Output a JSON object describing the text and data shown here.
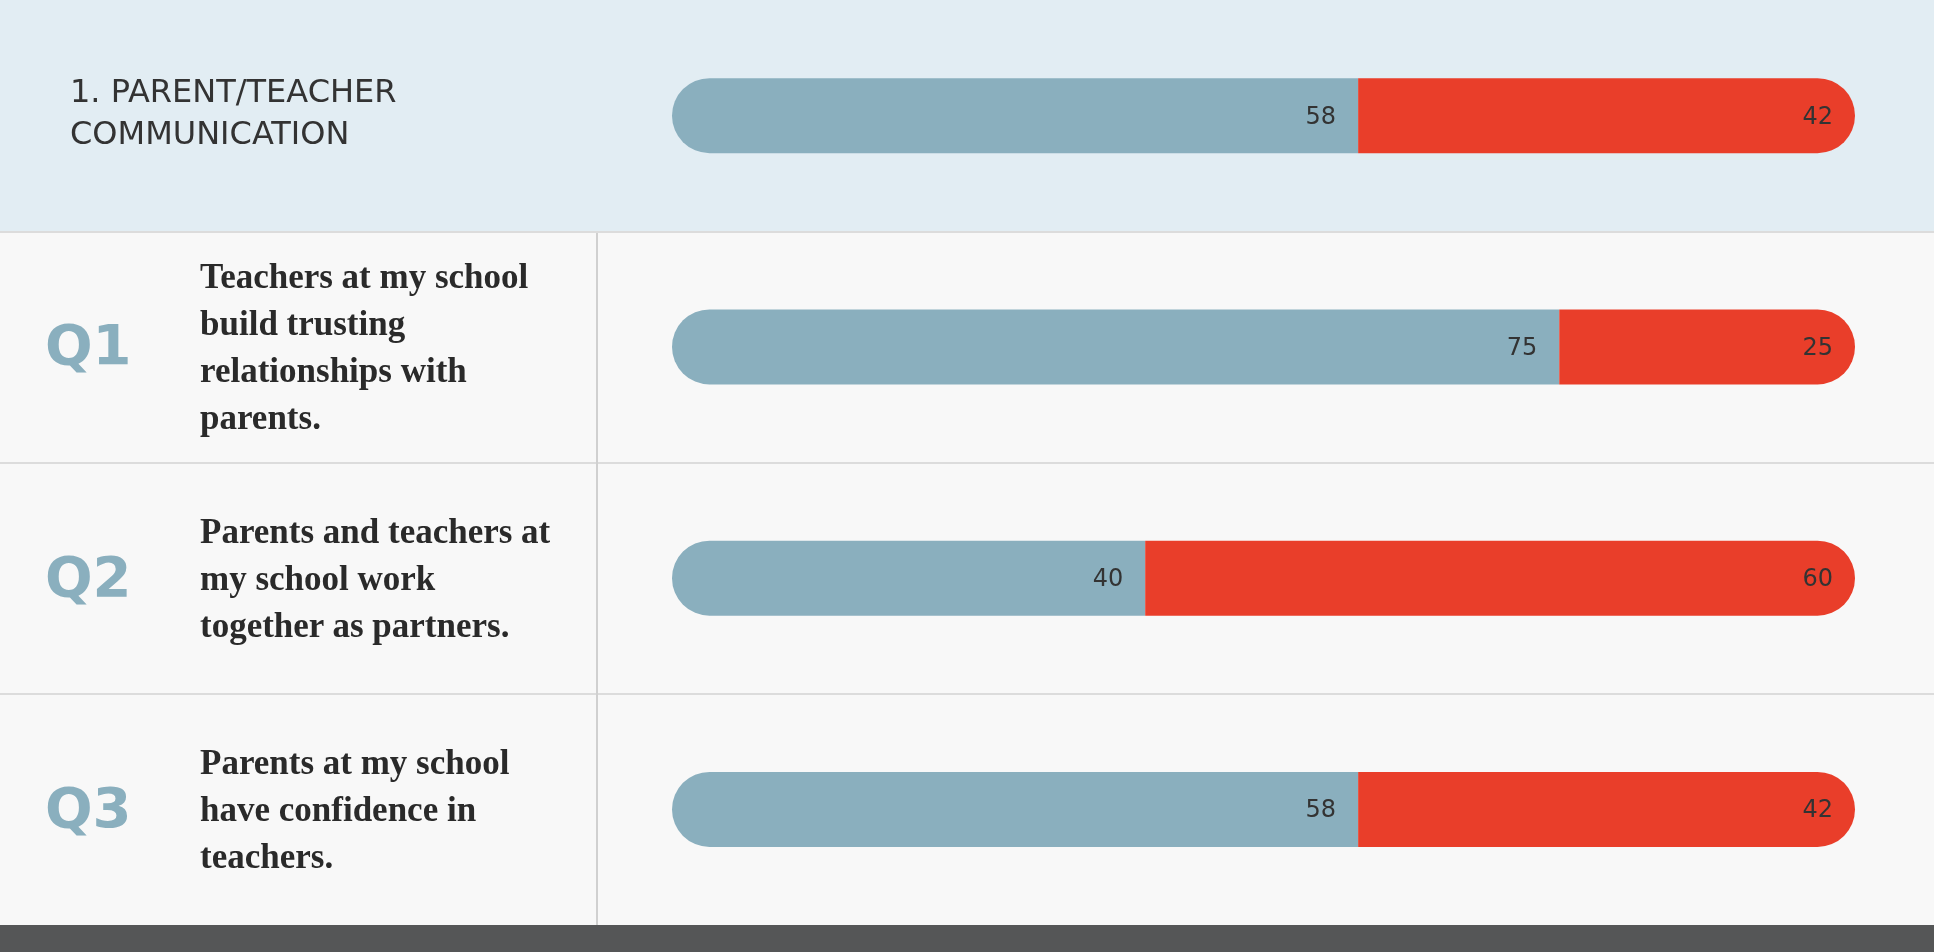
{
  "chart_data": {
    "type": "bar",
    "orientation": "horizontal",
    "stacked": true,
    "data_labels": true,
    "title": "1. PARENT/TEACHER COMMUNICATION",
    "categories": [
      null,
      "Teachers at my school build trusting relationships with parents.",
      "Parents and teachers at my school work together as partners.",
      "Parents at my school have confidence in teachers."
    ],
    "series": [
      {
        "color": "#8aafbe",
        "values": [
          58,
          75,
          40,
          58
        ]
      },
      {
        "color": "#e93e2a",
        "values": [
          42,
          25,
          60,
          42
        ]
      }
    ],
    "annotations": [
      "Q1",
      "Q2",
      "Q3"
    ]
  }
}
